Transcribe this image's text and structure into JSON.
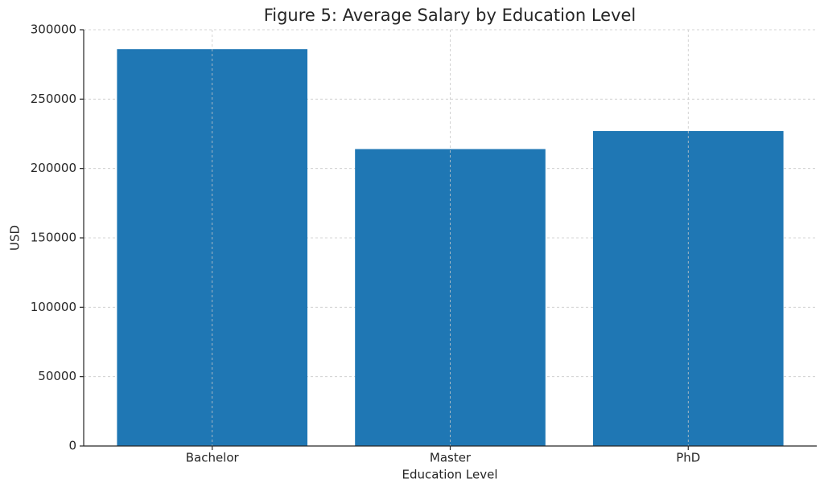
{
  "chart_data": {
    "type": "bar",
    "title": "Figure 5: Average Salary by Education Level",
    "x_label": "Education Level",
    "y_label": "USD",
    "categories": [
      "Bachelor",
      "Master",
      "PhD"
    ],
    "values": [
      286000,
      214000,
      227000
    ],
    "color": "#1f77b4",
    "ylim": [
      0,
      300000
    ],
    "yticks": [
      0,
      50000,
      100000,
      150000,
      200000,
      250000,
      300000
    ],
    "grid": true
  }
}
